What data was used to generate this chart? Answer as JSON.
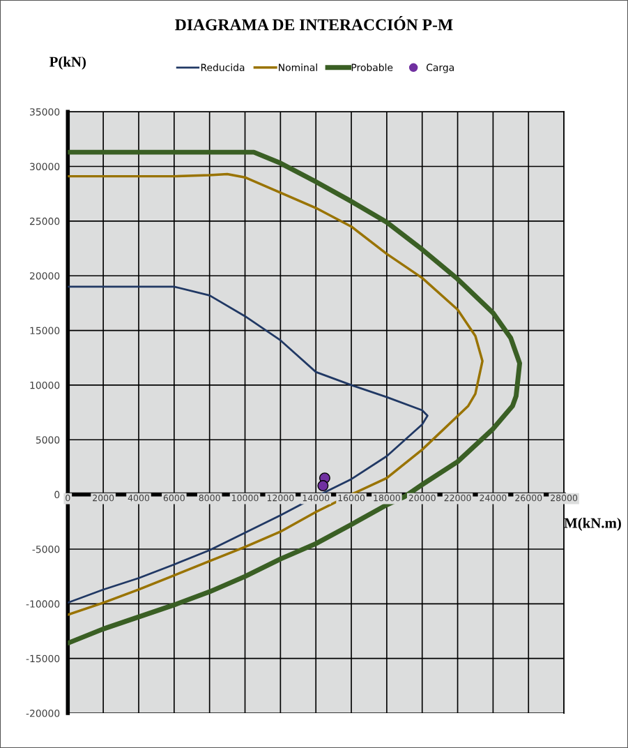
{
  "chart_data": {
    "type": "line",
    "title": "DIAGRAMA DE INTERACCIÓN P-M",
    "xlabel": "M(kN.m)",
    "ylabel": "P(kN)",
    "series": [
      {
        "name": "Reducida",
        "color": "#203864",
        "x": [
          0,
          2000,
          4000,
          6000,
          8000,
          10000,
          12000,
          14000,
          16000,
          18000,
          20000,
          20300,
          20000,
          18000,
          16000,
          14000,
          12000,
          10000,
          8000,
          6000,
          4000,
          2000,
          0
        ],
        "values": [
          19000,
          19000,
          19000,
          19000,
          18200,
          16300,
          14100,
          11200,
          10000,
          8900,
          7700,
          7200,
          6400,
          3500,
          1400,
          -200,
          -1900,
          -3500,
          -5100,
          -6400,
          -7650,
          -8700,
          -9900
        ]
      },
      {
        "name": "Nominal",
        "color": "#997300",
        "x": [
          0,
          2000,
          4000,
          6000,
          8000,
          9000,
          10000,
          12000,
          14000,
          16000,
          18000,
          20000,
          22000,
          23000,
          23400,
          23000,
          22600,
          20000,
          18000,
          16000,
          14000,
          12000,
          10000,
          8000,
          6000,
          4000,
          2000,
          0
        ],
        "values": [
          29100,
          29100,
          29100,
          29100,
          29200,
          29300,
          29000,
          27600,
          26200,
          24500,
          22000,
          19800,
          16900,
          14500,
          12200,
          9200,
          8100,
          4100,
          1500,
          0,
          -1600,
          -3400,
          -4800,
          -6100,
          -7400,
          -8700,
          -9900,
          -11000
        ]
      },
      {
        "name": "Probable",
        "color": "#3a5f24",
        "x": [
          0,
          2000,
          4000,
          6000,
          8000,
          10000,
          10500,
          12000,
          14000,
          16000,
          18000,
          20000,
          22000,
          24000,
          25000,
          25500,
          25300,
          25100,
          24000,
          22000,
          20000,
          19000,
          18000,
          16000,
          14000,
          12000,
          10000,
          8000,
          6000,
          4000,
          2000,
          0
        ],
        "values": [
          31300,
          31300,
          31300,
          31300,
          31300,
          31300,
          31300,
          30300,
          28600,
          26800,
          24900,
          22400,
          19700,
          16600,
          14300,
          12000,
          9000,
          8100,
          6000,
          3000,
          900,
          -200,
          -950,
          -2750,
          -4500,
          -5900,
          -7500,
          -8900,
          -10100,
          -11200,
          -12300,
          -13600
        ]
      },
      {
        "name": "Carga",
        "type": "scatter",
        "color": "#7030a0",
        "marker": "circle",
        "x": [
          14500,
          14400
        ],
        "values": [
          1500,
          800
        ]
      }
    ],
    "xlim": [
      0,
      28000
    ],
    "xticks": [
      0,
      2000,
      4000,
      6000,
      8000,
      10000,
      12000,
      14000,
      16000,
      18000,
      20000,
      22000,
      24000,
      26000,
      28000
    ],
    "ylim": [
      -20000,
      35000
    ],
    "yticks": [
      -20000,
      -15000,
      -10000,
      -5000,
      0,
      5000,
      10000,
      15000,
      20000,
      25000,
      30000,
      35000
    ],
    "grid": true,
    "legend": "top"
  }
}
